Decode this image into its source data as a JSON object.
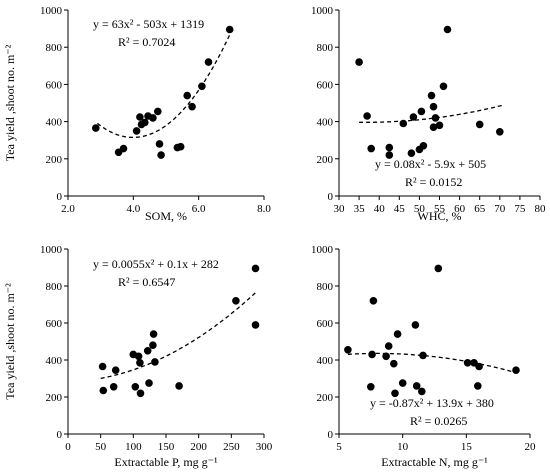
{
  "chart_data": [
    {
      "type": "scatter",
      "ylabel": "Tea yield ,shoot no. m⁻²",
      "xlabel": "SOM, %",
      "xlim": [
        2.0,
        8.0
      ],
      "ylim": [
        0,
        1000
      ],
      "xticks": [
        2.0,
        4.0,
        6.0,
        8.0
      ],
      "xtick_labels": [
        "2.0",
        "4.0",
        "6.0",
        "8.0"
      ],
      "yticks": [
        0,
        200,
        400,
        600,
        800,
        1000
      ],
      "ytick_labels": [
        "0",
        "200",
        "400",
        "600",
        "800",
        "1000"
      ],
      "grid": false,
      "legend": "none",
      "equation": "y = 63x² - 503x + 1319",
      "r2": "R² = 0.7024",
      "trendline": {
        "kind": "quadratic",
        "coeffs": [
          63,
          -503,
          1319
        ],
        "x_range": [
          2.9,
          6.95
        ],
        "style": "dashed"
      },
      "points": [
        [
          2.85,
          365
        ],
        [
          3.55,
          235
        ],
        [
          3.7,
          255
        ],
        [
          4.1,
          350
        ],
        [
          4.2,
          425
        ],
        [
          4.25,
          385
        ],
        [
          4.35,
          395
        ],
        [
          4.45,
          430
        ],
        [
          4.6,
          420
        ],
        [
          4.75,
          455
        ],
        [
          4.8,
          280
        ],
        [
          4.85,
          220
        ],
        [
          5.35,
          260
        ],
        [
          5.45,
          265
        ],
        [
          5.65,
          540
        ],
        [
          5.8,
          480
        ],
        [
          6.1,
          590
        ],
        [
          6.3,
          720
        ],
        [
          6.95,
          895
        ]
      ]
    },
    {
      "type": "scatter",
      "xlabel": "WHC, %",
      "xlim": [
        30,
        80
      ],
      "ylim": [
        0,
        1000
      ],
      "xticks": [
        30,
        35,
        40,
        45,
        50,
        55,
        60,
        65,
        70,
        75,
        80
      ],
      "xtick_labels": [
        "30",
        "35",
        "40",
        "45",
        "50",
        "55",
        "60",
        "65",
        "70",
        "75",
        "80"
      ],
      "yticks": [
        0,
        200,
        400,
        600,
        800,
        1000
      ],
      "ytick_labels": [
        "0",
        "200",
        "400",
        "600",
        "800",
        "1000"
      ],
      "grid": false,
      "legend": "none",
      "equation": "y = 0.08x² - 5.9x + 505",
      "r2": "R² = 0.0152",
      "trendline": {
        "kind": "quadratic",
        "coeffs": [
          0.08,
          -5.9,
          505
        ],
        "x_range": [
          35,
          71
        ],
        "style": "dashed"
      },
      "points": [
        [
          35,
          720
        ],
        [
          37,
          430
        ],
        [
          38,
          255
        ],
        [
          42.5,
          220
        ],
        [
          42.5,
          260
        ],
        [
          46,
          390
        ],
        [
          48,
          230
        ],
        [
          48.5,
          425
        ],
        [
          50,
          250
        ],
        [
          50.5,
          455
        ],
        [
          51,
          270
        ],
        [
          53,
          540
        ],
        [
          53.5,
          480
        ],
        [
          53.5,
          370
        ],
        [
          54,
          420
        ],
        [
          55,
          380
        ],
        [
          56,
          590
        ],
        [
          57,
          895
        ],
        [
          65,
          385
        ],
        [
          70,
          345
        ]
      ]
    },
    {
      "type": "scatter",
      "ylabel": "Tea yield ,shoot no. m⁻²",
      "xlabel": "Extractable P, mg g⁻¹",
      "xlim": [
        0,
        300
      ],
      "ylim": [
        0,
        1000
      ],
      "xticks": [
        0,
        50,
        100,
        150,
        200,
        250,
        300
      ],
      "xtick_labels": [
        "0",
        "50",
        "100",
        "150",
        "200",
        "250",
        "300"
      ],
      "yticks": [
        0,
        200,
        400,
        600,
        800,
        1000
      ],
      "ytick_labels": [
        "0",
        "200",
        "400",
        "600",
        "800",
        "1000"
      ],
      "grid": false,
      "legend": "none",
      "equation": "y = 0.0055x² + 0.1x + 282",
      "r2": "R² = 0.6547",
      "trendline": {
        "kind": "quadratic",
        "coeffs": [
          0.0055,
          0.1,
          282
        ],
        "x_range": [
          50,
          287
        ],
        "style": "dashed"
      },
      "points": [
        [
          53,
          365
        ],
        [
          54,
          235
        ],
        [
          70,
          255
        ],
        [
          73,
          345
        ],
        [
          100,
          430
        ],
        [
          103,
          255
        ],
        [
          108,
          420
        ],
        [
          110,
          385
        ],
        [
          111,
          220
        ],
        [
          122,
          450
        ],
        [
          124,
          275
        ],
        [
          130,
          480
        ],
        [
          131,
          540
        ],
        [
          133,
          390
        ],
        [
          170,
          260
        ],
        [
          257,
          720
        ],
        [
          287,
          895
        ],
        [
          287,
          590
        ]
      ]
    },
    {
      "type": "scatter",
      "xlabel": "Extractable N, mg g⁻¹",
      "xlim": [
        5,
        20
      ],
      "ylim": [
        0,
        1000
      ],
      "xticks": [
        5,
        10,
        15,
        20
      ],
      "xtick_labels": [
        "5",
        "10",
        "15",
        "20"
      ],
      "yticks": [
        0,
        200,
        400,
        600,
        800,
        1000
      ],
      "ytick_labels": [
        "0",
        "200",
        "400",
        "600",
        "800",
        "1000"
      ],
      "grid": false,
      "legend": "none",
      "equation": "y = -0.87x² + 13.9x + 380",
      "r2": "R² = 0.0265",
      "trendline": {
        "kind": "quadratic",
        "coeffs": [
          -0.87,
          13.9,
          380
        ],
        "x_range": [
          5.7,
          19.0
        ],
        "style": "dashed"
      },
      "points": [
        [
          5.7,
          455
        ],
        [
          7.5,
          255
        ],
        [
          7.6,
          430
        ],
        [
          7.7,
          720
        ],
        [
          8.7,
          420
        ],
        [
          8.9,
          475
        ],
        [
          9.3,
          380
        ],
        [
          9.4,
          220
        ],
        [
          9.6,
          540
        ],
        [
          10,
          275
        ],
        [
          11,
          590
        ],
        [
          11.1,
          260
        ],
        [
          11.5,
          230
        ],
        [
          11.6,
          425
        ],
        [
          12.8,
          895
        ],
        [
          15.1,
          385
        ],
        [
          15.6,
          385
        ],
        [
          15.9,
          260
        ],
        [
          16,
          365
        ],
        [
          18.9,
          345
        ]
      ]
    }
  ]
}
